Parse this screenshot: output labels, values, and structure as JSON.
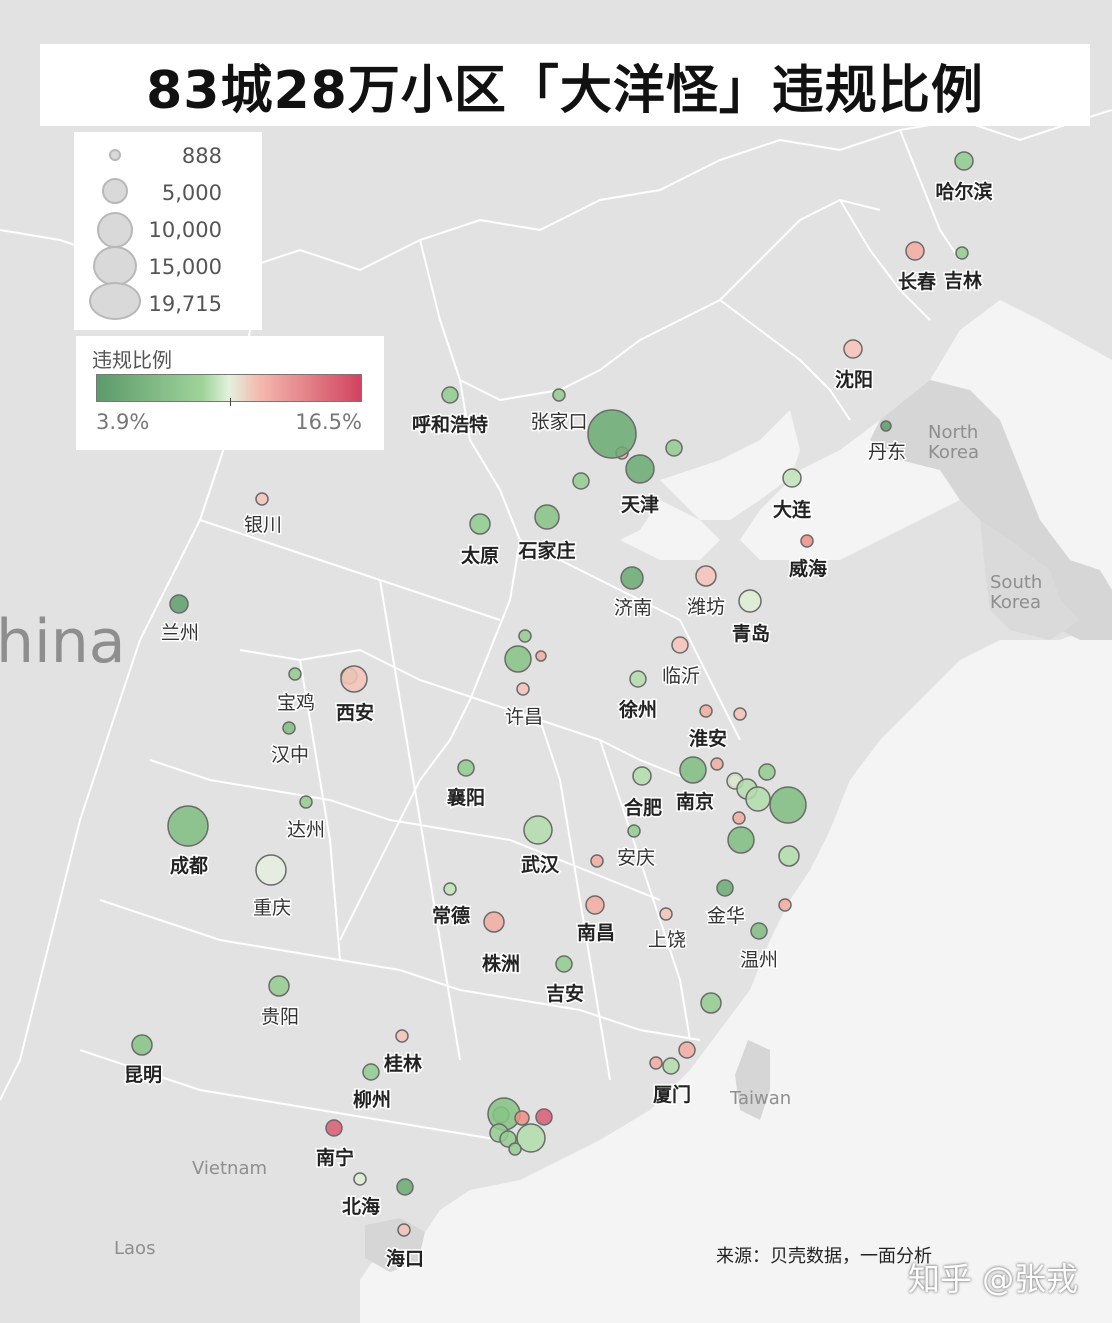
{
  "title": "83城28万小区「大洋怪」违规比例",
  "size_legend": {
    "entries": [
      {
        "label": "888",
        "value": 888
      },
      {
        "label": "5,000",
        "value": 5000
      },
      {
        "label": "10,000",
        "value": 10000
      },
      {
        "label": "15,000",
        "value": 15000
      },
      {
        "label": "19,715",
        "value": 19715
      }
    ]
  },
  "color_legend": {
    "title": "违规比例",
    "min_label": "3.9%",
    "max_label": "16.5%",
    "min": 3.9,
    "max": 16.5,
    "colors": [
      "#5c9a6a",
      "#9fd39a",
      "#e3f1dd",
      "#f4b7ad",
      "#d1435f"
    ]
  },
  "map_labels": [
    {
      "id": "china",
      "text": "hina"
    },
    {
      "id": "north-korea-1",
      "text": "North"
    },
    {
      "id": "north-korea-2",
      "text": "Korea"
    },
    {
      "id": "south-korea-1",
      "text": "South"
    },
    {
      "id": "south-korea-2",
      "text": "Korea"
    },
    {
      "id": "taiwan",
      "text": "Taiwan"
    },
    {
      "id": "vietnam",
      "text": "Vietnam"
    },
    {
      "id": "laos",
      "text": "Laos"
    }
  ],
  "cities": [
    {
      "name": "哈尔滨",
      "bold": true,
      "color": "#8fcb8c",
      "r": 9
    },
    {
      "name": "长春",
      "bold": true,
      "color": "#f3aba1",
      "r": 9
    },
    {
      "name": "吉林",
      "bold": true,
      "color": "#93cd8f",
      "r": 6
    },
    {
      "name": "沈阳",
      "bold": true,
      "color": "#f7c2b8",
      "r": 9
    },
    {
      "name": "丹东",
      "bold": false,
      "color": "#5f9c6a",
      "r": 5
    },
    {
      "name": "大连",
      "bold": true,
      "color": "#c0e3b6",
      "r": 9
    },
    {
      "name": "威海",
      "bold": true,
      "color": "#ee8d84",
      "r": 6
    },
    {
      "name": "呼和浩特",
      "bold": true,
      "color": "#8fcb8c",
      "r": 8
    },
    {
      "name": "张家口",
      "bold": false,
      "color": "#8fcb8c",
      "r": 6
    },
    {
      "name": "天津",
      "bold": true,
      "color": "#6aaa72",
      "r": 14
    },
    {
      "name": "石家庄",
      "bold": true,
      "color": "#86c385",
      "r": 12
    },
    {
      "name": "太原",
      "bold": true,
      "color": "#8fcb8c",
      "r": 10
    },
    {
      "name": "银川",
      "bold": false,
      "color": "#f7c2b8",
      "r": 6
    },
    {
      "name": "兰州",
      "bold": false,
      "color": "#5f9c6a",
      "r": 9
    },
    {
      "name": "济南",
      "bold": false,
      "color": "#6aaa72",
      "r": 11
    },
    {
      "name": "潍坊",
      "bold": false,
      "color": "#f7c2b8",
      "r": 10
    },
    {
      "name": "青岛",
      "bold": true,
      "color": "#dcefd4",
      "r": 11
    },
    {
      "name": "临沂",
      "bold": false,
      "color": "#f7c2b8",
      "r": 8
    },
    {
      "name": "徐州",
      "bold": true,
      "color": "#b2ddaa",
      "r": 8
    },
    {
      "name": "淮安",
      "bold": true,
      "color": "#f3aba1",
      "r": 6
    },
    {
      "name": "许昌",
      "bold": false,
      "color": "#f7c2b8",
      "r": 6
    },
    {
      "name": "西安",
      "bold": true,
      "color": "#f7c2b8",
      "r": 13
    },
    {
      "name": "宝鸡",
      "bold": false,
      "color": "#8fcb8c",
      "r": 6
    },
    {
      "name": "汉中",
      "bold": false,
      "color": "#7fbd80",
      "r": 6
    },
    {
      "name": "襄阳",
      "bold": true,
      "color": "#8fcb8c",
      "r": 8
    },
    {
      "name": "合肥",
      "bold": true,
      "color": "#b2ddaa",
      "r": 9
    },
    {
      "name": "南京",
      "bold": true,
      "color": "#7fbd80",
      "r": 13
    },
    {
      "name": "武汉",
      "bold": true,
      "color": "#b2ddaa",
      "r": 14
    },
    {
      "name": "安庆",
      "bold": false,
      "color": "#8fcb8c",
      "r": 6
    },
    {
      "name": "达州",
      "bold": false,
      "color": "#93cd8f",
      "r": 6
    },
    {
      "name": "成都",
      "bold": true,
      "color": "#7fbd80",
      "r": 20
    },
    {
      "name": "重庆",
      "bold": false,
      "color": "#e4efdf",
      "r": 15
    },
    {
      "name": "常德",
      "bold": true,
      "color": "#c0e3b6",
      "r": 6
    },
    {
      "name": "株洲",
      "bold": true,
      "color": "#f3aba1",
      "r": 10
    },
    {
      "name": "南昌",
      "bold": true,
      "color": "#f3aba1",
      "r": 9
    },
    {
      "name": "上饶",
      "bold": false,
      "color": "#f7c2b8",
      "r": 6
    },
    {
      "name": "金华",
      "bold": false,
      "color": "#6aaa72",
      "r": 8
    },
    {
      "name": "温州",
      "bold": false,
      "color": "#7fbd80",
      "r": 8
    },
    {
      "name": "吉安",
      "bold": true,
      "color": "#8fcb8c",
      "r": 8
    },
    {
      "name": "贵阳",
      "bold": false,
      "color": "#93cd8f",
      "r": 10
    },
    {
      "name": "昆明",
      "bold": true,
      "color": "#86c385",
      "r": 10
    },
    {
      "name": "桂林",
      "bold": true,
      "color": "#f7c2b8",
      "r": 6
    },
    {
      "name": "柳州",
      "bold": true,
      "color": "#8fcb8c",
      "r": 8
    },
    {
      "name": "南宁",
      "bold": true,
      "color": "#d95a72",
      "r": 8
    },
    {
      "name": "北海",
      "bold": true,
      "color": "#dcefd4",
      "r": 6
    },
    {
      "name": "海口",
      "bold": true,
      "color": "#f7c2b8",
      "r": 6
    },
    {
      "name": "厦门",
      "bold": true,
      "color": "#b2ddaa",
      "r": 8
    }
  ],
  "unlabeled_bubbles": [
    {
      "color": "#7fbd80",
      "r": 18
    },
    {
      "color": "#f3aba1",
      "r": 6
    },
    {
      "color": "#93cd8f",
      "r": 8
    },
    {
      "color": "#93cd8f",
      "r": 8
    },
    {
      "color": "#86c385",
      "r": 13
    },
    {
      "color": "#93cd8f",
      "r": 6
    },
    {
      "color": "#f3aba1",
      "r": 5
    },
    {
      "color": "#93cd8f",
      "r": 8
    },
    {
      "color": "#f3aba1",
      "r": 6
    },
    {
      "color": "#93cd8f",
      "r": 8
    },
    {
      "color": "#6aaa72",
      "r": 24
    },
    {
      "color": "#dcefd4",
      "r": 8
    },
    {
      "color": "#b2ddaa",
      "r": 10
    },
    {
      "color": "#b2ddaa",
      "r": 12
    },
    {
      "color": "#f3aba1",
      "r": 6
    },
    {
      "color": "#7fbd80",
      "r": 13
    },
    {
      "color": "#b2ddaa",
      "r": 10
    },
    {
      "color": "#f3aba1",
      "r": 6
    },
    {
      "color": "#f3aba1",
      "r": 6
    },
    {
      "color": "#93cd8f",
      "r": 10
    },
    {
      "color": "#f3aba1",
      "r": 6
    },
    {
      "color": "#f3aba1",
      "r": 8
    },
    {
      "color": "#93cd8f",
      "r": 8
    },
    {
      "color": "#86c385",
      "r": 16
    },
    {
      "color": "#93cd8f",
      "r": 9
    },
    {
      "color": "#b2ddaa",
      "r": 14
    },
    {
      "color": "#ee8d84",
      "r": 7
    },
    {
      "color": "#d95a72",
      "r": 8
    },
    {
      "color": "#93cd8f",
      "r": 8
    },
    {
      "color": "#93cd8f",
      "r": 6
    },
    {
      "color": "#6aaa72",
      "r": 8
    },
    {
      "color": "#f7c2b8",
      "r": 6
    },
    {
      "color": "#f3aba1",
      "r": 6
    }
  ],
  "source": "来源：贝壳数据，一面分析",
  "watermark": "知乎 @张戎"
}
